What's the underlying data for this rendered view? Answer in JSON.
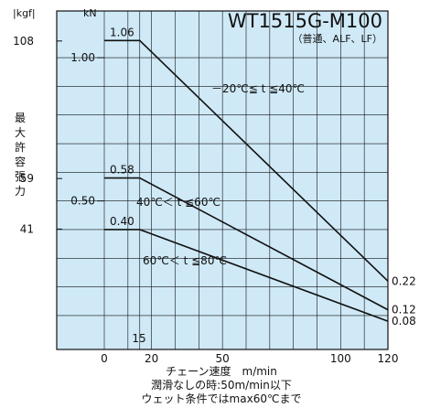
{
  "chart_data": {
    "type": "line",
    "title": "WT1515G-M100",
    "subtitle": "（普通、ALF、LF）",
    "xlabel": "チェーン速度　m/min",
    "ylabel": "最大許容張力",
    "y_unit": "kN",
    "y2_unit": "|kgf|",
    "notes": [
      "潤滑なしの時:50m/min以下",
      "ウェット条件ではmax60℃まで"
    ],
    "x_ticks": [
      "0",
      "20",
      "50",
      "100",
      "120"
    ],
    "x_extra_tick": "15",
    "xlim": [
      0,
      120
    ],
    "y_ticks": [
      "1.00",
      "0.50"
    ],
    "kgf_ticks": [
      "108",
      "59",
      "41"
    ],
    "ylim": [
      0,
      1.12
    ],
    "grid": true,
    "series": [
      {
        "name": "－20℃≦ t ≦40℃",
        "x": [
          0,
          15,
          120
        ],
        "y": [
          1.06,
          1.06,
          0.22
        ],
        "start_label": "1.06",
        "end_label": "0.22"
      },
      {
        "name": "40℃＜ t ≦60℃",
        "x": [
          0,
          15,
          120
        ],
        "y": [
          0.58,
          0.58,
          0.12
        ],
        "start_label": "0.58",
        "end_label": "0.12"
      },
      {
        "name": "60℃＜ t ≦80℃",
        "x": [
          0,
          15,
          120
        ],
        "y": [
          0.4,
          0.4,
          0.08
        ],
        "start_label": "0.40",
        "end_label": "0.08"
      }
    ]
  },
  "colors": {
    "plot_background": "#cfe9f7",
    "grid": "#000000",
    "line": "#111111"
  }
}
